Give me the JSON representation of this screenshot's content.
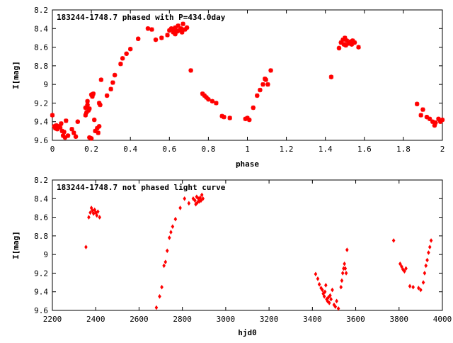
{
  "chart_data": [
    {
      "type": "scatter",
      "title": "183244-1748.7 phased with P=434.0day",
      "xlabel": "phase",
      "ylabel": "I[mag]",
      "xlim": [
        0,
        2
      ],
      "ylim": [
        8.2,
        9.6
      ],
      "y_inverted": true,
      "x_ticks": [
        "0",
        "0.2",
        "0.4",
        "0.6",
        "0.8",
        "1",
        "1.2",
        "1.4",
        "1.6",
        "1.8",
        "2"
      ],
      "y_ticks": [
        "8.2",
        "8.4",
        "8.6",
        "8.8",
        "9",
        "9.2",
        "9.4",
        "9.6"
      ],
      "marker": "star",
      "color": "#ff0000",
      "grid": false,
      "points": [
        [
          0.0,
          9.33
        ],
        [
          0.01,
          9.45
        ],
        [
          0.015,
          9.47
        ],
        [
          0.02,
          9.44
        ],
        [
          0.025,
          9.48
        ],
        [
          0.03,
          9.45
        ],
        [
          0.04,
          9.46
        ],
        [
          0.045,
          9.42
        ],
        [
          0.05,
          9.5
        ],
        [
          0.055,
          9.55
        ],
        [
          0.06,
          9.51
        ],
        [
          0.065,
          9.57
        ],
        [
          0.07,
          9.39
        ],
        [
          0.08,
          9.55
        ],
        [
          0.1,
          9.48
        ],
        [
          0.11,
          9.52
        ],
        [
          0.12,
          9.56
        ],
        [
          0.13,
          9.4
        ],
        [
          0.17,
          9.33
        ],
        [
          0.17,
          9.25
        ],
        [
          0.175,
          9.3
        ],
        [
          0.18,
          9.22
        ],
        [
          0.18,
          9.18
        ],
        [
          0.185,
          9.28
        ],
        [
          0.19,
          9.26
        ],
        [
          0.19,
          9.57
        ],
        [
          0.2,
          9.58
        ],
        [
          0.2,
          9.11
        ],
        [
          0.205,
          9.13
        ],
        [
          0.21,
          9.1
        ],
        [
          0.215,
          9.38
        ],
        [
          0.22,
          9.5
        ],
        [
          0.23,
          9.47
        ],
        [
          0.235,
          9.52
        ],
        [
          0.24,
          9.45
        ],
        [
          0.24,
          9.2
        ],
        [
          0.245,
          9.22
        ],
        [
          0.25,
          8.95
        ],
        [
          0.28,
          9.12
        ],
        [
          0.3,
          9.05
        ],
        [
          0.31,
          8.98
        ],
        [
          0.32,
          8.9
        ],
        [
          0.35,
          8.78
        ],
        [
          0.36,
          8.72
        ],
        [
          0.38,
          8.67
        ],
        [
          0.4,
          8.62
        ],
        [
          0.44,
          8.51
        ],
        [
          0.49,
          8.4
        ],
        [
          0.51,
          8.41
        ],
        [
          0.53,
          8.52
        ],
        [
          0.56,
          8.5
        ],
        [
          0.59,
          8.47
        ],
        [
          0.6,
          8.42
        ],
        [
          0.61,
          8.4
        ],
        [
          0.62,
          8.44
        ],
        [
          0.625,
          8.41
        ],
        [
          0.63,
          8.39
        ],
        [
          0.63,
          8.46
        ],
        [
          0.64,
          8.43
        ],
        [
          0.645,
          8.37
        ],
        [
          0.65,
          8.42
        ],
        [
          0.66,
          8.4
        ],
        [
          0.665,
          8.44
        ],
        [
          0.67,
          8.35
        ],
        [
          0.68,
          8.41
        ],
        [
          0.69,
          8.39
        ],
        [
          0.71,
          8.85
        ],
        [
          0.77,
          9.1
        ],
        [
          0.78,
          9.12
        ],
        [
          0.79,
          9.14
        ],
        [
          0.8,
          9.16
        ],
        [
          0.82,
          9.18
        ],
        [
          0.84,
          9.2
        ],
        [
          0.87,
          9.34
        ],
        [
          0.88,
          9.35
        ],
        [
          0.91,
          9.36
        ],
        [
          0.99,
          9.37
        ],
        [
          1.0,
          9.36
        ],
        [
          1.01,
          9.38
        ],
        [
          1.03,
          9.25
        ],
        [
          1.05,
          9.12
        ],
        [
          1.065,
          9.06
        ],
        [
          1.08,
          9.0
        ],
        [
          1.09,
          8.94
        ],
        [
          1.095,
          8.95
        ],
        [
          1.105,
          9.0
        ],
        [
          1.12,
          8.85
        ],
        [
          1.43,
          8.92
        ],
        [
          1.47,
          8.61
        ],
        [
          1.48,
          8.55
        ],
        [
          1.49,
          8.52
        ],
        [
          1.495,
          8.57
        ],
        [
          1.5,
          8.5
        ],
        [
          1.505,
          8.58
        ],
        [
          1.51,
          8.53
        ],
        [
          1.52,
          8.56
        ],
        [
          1.53,
          8.54
        ],
        [
          1.535,
          8.57
        ],
        [
          1.54,
          8.53
        ],
        [
          1.55,
          8.55
        ],
        [
          1.57,
          8.6
        ],
        [
          1.87,
          9.21
        ],
        [
          1.89,
          9.33
        ],
        [
          1.9,
          9.27
        ],
        [
          1.92,
          9.35
        ],
        [
          1.935,
          9.37
        ],
        [
          1.95,
          9.4
        ],
        [
          1.96,
          9.44
        ],
        [
          1.965,
          9.41
        ],
        [
          1.98,
          9.37
        ],
        [
          1.99,
          9.4
        ],
        [
          2.0,
          9.38
        ]
      ]
    },
    {
      "type": "scatter",
      "title": "183244-1748.7 not phased light curve",
      "xlabel": "hjd0",
      "ylabel": "I[mag]",
      "xlim": [
        2200,
        4000
      ],
      "ylim": [
        8.2,
        9.6
      ],
      "y_inverted": true,
      "x_ticks": [
        "2200",
        "2400",
        "2600",
        "2800",
        "3000",
        "3200",
        "3400",
        "3600",
        "3800",
        "4000"
      ],
      "y_ticks": [
        "8.2",
        "8.4",
        "8.6",
        "8.8",
        "9",
        "9.2",
        "9.4",
        "9.6"
      ],
      "marker": "diamond",
      "color": "#ff0000",
      "grid": false,
      "points": [
        [
          2355,
          8.92
        ],
        [
          2368,
          8.6
        ],
        [
          2375,
          8.55
        ],
        [
          2380,
          8.5
        ],
        [
          2385,
          8.53
        ],
        [
          2390,
          8.56
        ],
        [
          2395,
          8.52
        ],
        [
          2400,
          8.55
        ],
        [
          2405,
          8.58
        ],
        [
          2410,
          8.54
        ],
        [
          2418,
          8.6
        ],
        [
          2680,
          9.57
        ],
        [
          2695,
          9.45
        ],
        [
          2705,
          9.35
        ],
        [
          2715,
          9.12
        ],
        [
          2722,
          9.08
        ],
        [
          2730,
          8.96
        ],
        [
          2740,
          8.82
        ],
        [
          2747,
          8.76
        ],
        [
          2755,
          8.7
        ],
        [
          2768,
          8.62
        ],
        [
          2790,
          8.5
        ],
        [
          2810,
          8.4
        ],
        [
          2830,
          8.45
        ],
        [
          2850,
          8.4
        ],
        [
          2858,
          8.42
        ],
        [
          2862,
          8.46
        ],
        [
          2866,
          8.38
        ],
        [
          2870,
          8.44
        ],
        [
          2874,
          8.4
        ],
        [
          2878,
          8.43
        ],
        [
          2882,
          8.39
        ],
        [
          2886,
          8.42
        ],
        [
          2890,
          8.36
        ],
        [
          2895,
          8.4
        ],
        [
          3415,
          9.21
        ],
        [
          3425,
          9.26
        ],
        [
          3432,
          9.32
        ],
        [
          3440,
          9.36
        ],
        [
          3446,
          9.38
        ],
        [
          3450,
          9.42
        ],
        [
          3455,
          9.45
        ],
        [
          3458,
          9.4
        ],
        [
          3462,
          9.33
        ],
        [
          3466,
          9.48
        ],
        [
          3470,
          9.5
        ],
        [
          3474,
          9.46
        ],
        [
          3478,
          9.52
        ],
        [
          3482,
          9.44
        ],
        [
          3486,
          9.48
        ],
        [
          3492,
          9.38
        ],
        [
          3500,
          9.54
        ],
        [
          3506,
          9.56
        ],
        [
          3512,
          9.5
        ],
        [
          3520,
          9.58
        ],
        [
          3532,
          9.35
        ],
        [
          3536,
          9.28
        ],
        [
          3540,
          9.2
        ],
        [
          3544,
          9.15
        ],
        [
          3548,
          9.1
        ],
        [
          3552,
          9.15
        ],
        [
          3556,
          9.2
        ],
        [
          3560,
          8.95
        ],
        [
          3775,
          8.85
        ],
        [
          3805,
          9.1
        ],
        [
          3812,
          9.13
        ],
        [
          3818,
          9.16
        ],
        [
          3825,
          9.18
        ],
        [
          3832,
          9.15
        ],
        [
          3850,
          9.34
        ],
        [
          3865,
          9.35
        ],
        [
          3890,
          9.36
        ],
        [
          3900,
          9.38
        ],
        [
          3912,
          9.3
        ],
        [
          3918,
          9.2
        ],
        [
          3924,
          9.12
        ],
        [
          3930,
          9.06
        ],
        [
          3936,
          8.98
        ],
        [
          3942,
          8.92
        ],
        [
          3948,
          8.85
        ]
      ]
    }
  ]
}
